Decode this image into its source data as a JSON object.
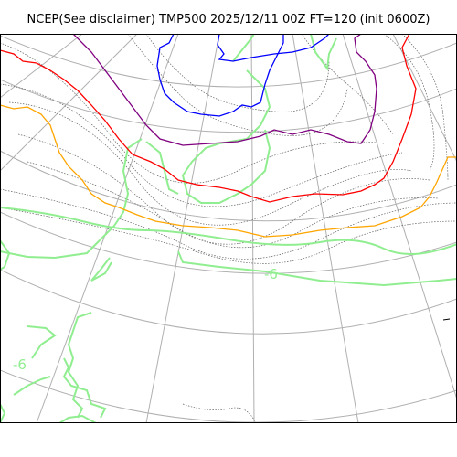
{
  "title": "NCEP(See disclaimer) TMP500 2025/12/11 00Z FT=120 (init 0600Z)",
  "contour_labels": [
    {
      "text": "-6",
      "color": "#90ee90"
    },
    {
      "text": "-6",
      "color": "#90ee90"
    }
  ],
  "colors": {
    "graticule": "#b0b0b0",
    "isotherm_minor": "#606060",
    "isotherm_-6": "#90ee90",
    "isotherm_orange": "#ffa500",
    "isotherm_red": "#ff0000",
    "isotherm_purple": "#800080",
    "isotherm_blue": "#0000ff",
    "frame": "#000000"
  }
}
